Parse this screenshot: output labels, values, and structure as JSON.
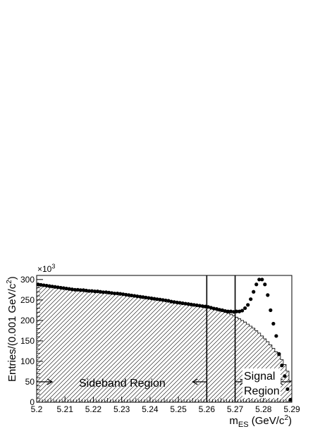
{
  "chart_data": {
    "type": "scatter",
    "title": "",
    "xlabel_main": "m",
    "xlabel_sub": "ES",
    "xlabel_unit_open": " (GeV/c",
    "xlabel_unit_sup": "2",
    "xlabel_unit_close": ")",
    "ylabel_main": "Entries/(0.001 GeV/c",
    "ylabel_sup": "2",
    "ylabel_close": ")",
    "y_multiplier_base": "×10",
    "y_multiplier_exp": "3",
    "xlim": [
      5.2,
      5.29
    ],
    "ylim": [
      0,
      310
    ],
    "x_ticks": [
      5.2,
      5.21,
      5.22,
      5.23,
      5.24,
      5.25,
      5.26,
      5.27,
      5.28,
      5.29
    ],
    "x_tick_labels": [
      "5.2",
      "5.21",
      "5.22",
      "5.23",
      "5.24",
      "5.25",
      "5.26",
      "5.27",
      "5.28",
      "5.29"
    ],
    "y_ticks": [
      0,
      50,
      100,
      150,
      200,
      250,
      300
    ],
    "y_tick_labels": [
      "0",
      "50",
      "100",
      "150",
      "200",
      "250",
      "300"
    ],
    "sideband_boundary": 5.26,
    "signal_boundary": 5.27,
    "annotations": {
      "sideband": "Sideband Region",
      "signal_line1": "Signal",
      "signal_line2": "Region"
    },
    "background_points": [
      [
        5.2005,
        288
      ],
      [
        5.2015,
        287
      ],
      [
        5.2025,
        286
      ],
      [
        5.2035,
        285
      ],
      [
        5.2045,
        284
      ],
      [
        5.2055,
        283
      ],
      [
        5.2065,
        282
      ],
      [
        5.2075,
        281
      ],
      [
        5.2085,
        280
      ],
      [
        5.2095,
        279
      ],
      [
        5.2105,
        278
      ],
      [
        5.2115,
        277
      ],
      [
        5.2125,
        276
      ],
      [
        5.2135,
        275
      ],
      [
        5.2145,
        275
      ],
      [
        5.2155,
        274
      ],
      [
        5.2165,
        274
      ],
      [
        5.2175,
        273
      ],
      [
        5.2185,
        272
      ],
      [
        5.2195,
        272
      ],
      [
        5.2205,
        271
      ],
      [
        5.2215,
        271
      ],
      [
        5.2225,
        270
      ],
      [
        5.2235,
        269
      ],
      [
        5.2245,
        269
      ],
      [
        5.2255,
        268
      ],
      [
        5.2265,
        267
      ],
      [
        5.2275,
        266
      ],
      [
        5.2285,
        266
      ],
      [
        5.2295,
        265
      ],
      [
        5.2305,
        264
      ],
      [
        5.2315,
        263
      ],
      [
        5.2325,
        262
      ],
      [
        5.2335,
        261
      ],
      [
        5.2345,
        260
      ],
      [
        5.2355,
        259
      ],
      [
        5.2365,
        258
      ],
      [
        5.2375,
        257
      ],
      [
        5.2385,
        256
      ],
      [
        5.2395,
        255
      ],
      [
        5.2405,
        254
      ],
      [
        5.2415,
        253
      ],
      [
        5.2425,
        252
      ],
      [
        5.2435,
        251
      ],
      [
        5.2445,
        250
      ],
      [
        5.2455,
        249
      ],
      [
        5.2465,
        248
      ],
      [
        5.2475,
        246
      ],
      [
        5.2485,
        245
      ],
      [
        5.2495,
        244
      ],
      [
        5.2505,
        243
      ],
      [
        5.2515,
        242
      ],
      [
        5.2525,
        241
      ],
      [
        5.2535,
        240
      ],
      [
        5.2545,
        239
      ],
      [
        5.2555,
        238
      ],
      [
        5.2565,
        237
      ],
      [
        5.2575,
        236
      ],
      [
        5.2585,
        235
      ],
      [
        5.2595,
        234
      ],
      [
        5.2605,
        233
      ],
      [
        5.2615,
        231
      ],
      [
        5.2625,
        229
      ],
      [
        5.2635,
        228
      ],
      [
        5.2645,
        226
      ],
      [
        5.2655,
        225
      ],
      [
        5.2665,
        223
      ],
      [
        5.2675,
        222
      ],
      [
        5.2685,
        222
      ],
      [
        5.2695,
        221
      ]
    ],
    "signal_points": [
      [
        5.2705,
        222
      ],
      [
        5.2715,
        222
      ],
      [
        5.2725,
        224
      ],
      [
        5.2735,
        230
      ],
      [
        5.2745,
        238
      ],
      [
        5.2755,
        252
      ],
      [
        5.2765,
        270
      ],
      [
        5.2775,
        288
      ],
      [
        5.2785,
        300
      ],
      [
        5.2795,
        300
      ],
      [
        5.2805,
        288
      ],
      [
        5.2815,
        262
      ],
      [
        5.2825,
        225
      ],
      [
        5.2835,
        192
      ],
      [
        5.2845,
        162
      ],
      [
        5.2855,
        118
      ],
      [
        5.2865,
        90
      ],
      [
        5.2875,
        64
      ],
      [
        5.2885,
        32
      ],
      [
        5.2895,
        6
      ]
    ],
    "histogram": {
      "bin_width": 0.001,
      "start": 5.2,
      "values": [
        288,
        287,
        286,
        285,
        284,
        283,
        282,
        281,
        280,
        279,
        278,
        277,
        276,
        275,
        275,
        274,
        274,
        273,
        272,
        272,
        271,
        271,
        270,
        269,
        269,
        268,
        267,
        266,
        266,
        265,
        264,
        263,
        262,
        261,
        260,
        259,
        258,
        257,
        256,
        255,
        254,
        253,
        252,
        251,
        250,
        249,
        248,
        246,
        245,
        244,
        243,
        242,
        241,
        240,
        239,
        238,
        237,
        236,
        235,
        234,
        232,
        230,
        228,
        226,
        224,
        222,
        220,
        218,
        215,
        212,
        208,
        204,
        200,
        196,
        191,
        186,
        181,
        175,
        169,
        162,
        155,
        148,
        140,
        132,
        123,
        114,
        104,
        92,
        76,
        52
      ]
    },
    "colors": {
      "marker": "#000000",
      "hatch": "#000000",
      "background": "#ffffff"
    }
  }
}
